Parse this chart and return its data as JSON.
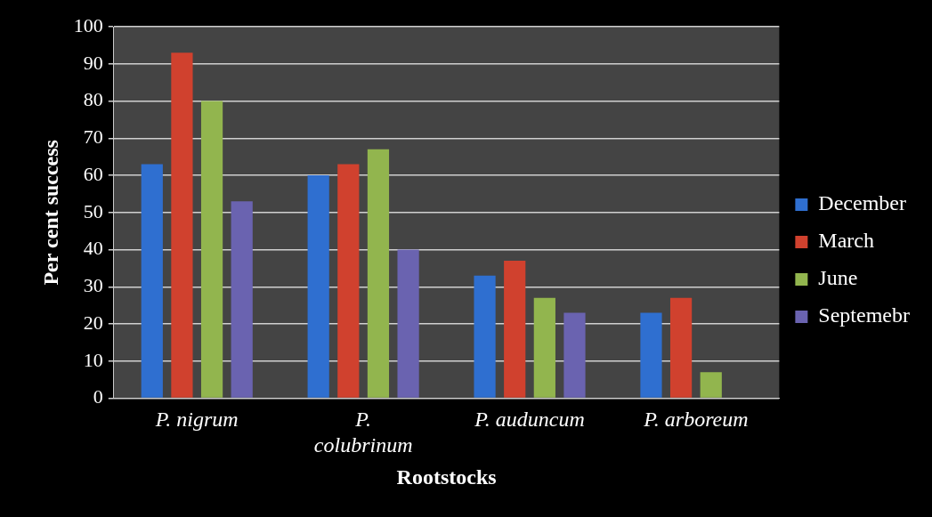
{
  "chart_data": {
    "type": "bar",
    "xlabel": "Rootstocks",
    "ylabel": "Per cent success",
    "categories": [
      "P. nigrum",
      "P. colubrinum",
      "P. auduncum",
      "P. arboreum"
    ],
    "series": [
      {
        "name": "December",
        "color": "#2f6fd0",
        "values": [
          63,
          60,
          33,
          23
        ]
      },
      {
        "name": "March",
        "color": "#d0412e",
        "values": [
          93,
          63,
          37,
          27
        ]
      },
      {
        "name": "June",
        "color": "#92b54e",
        "values": [
          80,
          67,
          27,
          7
        ]
      },
      {
        "name": "Septemebr",
        "color": "#6a63b0",
        "values": [
          53,
          40,
          23,
          0
        ]
      }
    ],
    "ylim": [
      0,
      100
    ],
    "yticks": [
      0,
      10,
      20,
      30,
      40,
      50,
      60,
      70,
      80,
      90,
      100
    ],
    "grid": "y",
    "legend": "right"
  }
}
